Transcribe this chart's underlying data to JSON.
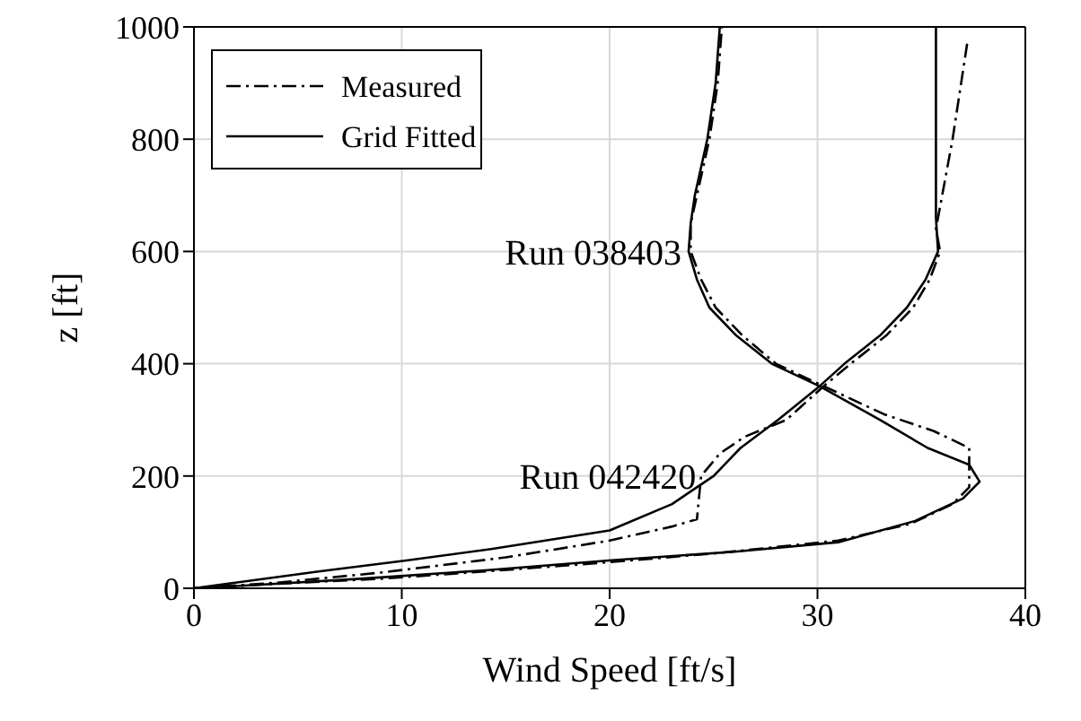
{
  "chart_data": {
    "type": "line",
    "xlabel": "Wind Speed [ft/s]",
    "ylabel": "z [ft]",
    "xlim": [
      0,
      40
    ],
    "xticks": [
      0,
      10,
      20,
      30,
      40
    ],
    "ylim": [
      0,
      1000
    ],
    "yticks": [
      0,
      200,
      400,
      600,
      800,
      1000
    ],
    "grid": true,
    "legend": "top left",
    "marker": "none",
    "annotations": [
      {
        "text": "Run 038403",
        "x": 23.8,
        "y": 600
      },
      {
        "text": "Run 042420",
        "x": 24.5,
        "y": 200
      }
    ],
    "series": [
      {
        "name": "Measured",
        "color": "#000000",
        "line_style": "dashed",
        "x": [
          0,
          4,
          9,
          14,
          19.5,
          25,
          31,
          34.5,
          36.5,
          37.3,
          37.3,
          35.6,
          33.2,
          30.3,
          28,
          26.4,
          25.1,
          24.4,
          23.9,
          23.9,
          24.2,
          24.8,
          25.2,
          25.4
        ],
        "values": [
          0,
          8,
          17,
          30,
          45,
          62,
          85,
          115,
          150,
          180,
          250,
          280,
          310,
          360,
          400,
          450,
          500,
          550,
          600,
          650,
          700,
          800,
          900,
          1000
        ]
      },
      {
        "color": "#000000",
        "line_style": "dashed",
        "x": [
          0,
          4,
          9,
          15,
          20,
          23,
          24.2,
          24.4,
          25.3,
          26.5,
          28.5,
          30.3,
          31.6,
          33.3,
          34.6,
          35.4,
          35.9,
          35.7,
          35.8,
          36.5,
          37.2
        ],
        "values": [
          0,
          10,
          28,
          55,
          85,
          110,
          123,
          200,
          240,
          270,
          300,
          360,
          400,
          450,
          500,
          550,
          600,
          640,
          660,
          800,
          970
        ]
      },
      {
        "name": "Grid Fitted",
        "color": "#000000",
        "line_style": "solid",
        "x": [
          0,
          3,
          8,
          14,
          20.1,
          26,
          31,
          34.7,
          37,
          37.8,
          37.3,
          35.3,
          33,
          30.1,
          27.8,
          26.1,
          24.8,
          24.2,
          23.8,
          23.9,
          24.1,
          24.7,
          25.1,
          25.3
        ],
        "values": [
          0,
          6,
          17,
          32,
          50,
          65,
          82,
          120,
          160,
          190,
          220,
          250,
          300,
          360,
          400,
          450,
          500,
          550,
          600,
          650,
          700,
          800,
          900,
          1000
        ]
      },
      {
        "color": "#000000",
        "line_style": "solid",
        "x": [
          0,
          2,
          6,
          10.3,
          14.3,
          20,
          23,
          25,
          26.3,
          28.1,
          30.1,
          31.3,
          33,
          34.3,
          35.2,
          35.8,
          35.7,
          35.7
        ],
        "values": [
          0,
          10,
          30,
          50,
          70,
          103,
          150,
          200,
          250,
          300,
          360,
          400,
          450,
          500,
          550,
          600,
          660,
          1000
        ]
      }
    ]
  }
}
